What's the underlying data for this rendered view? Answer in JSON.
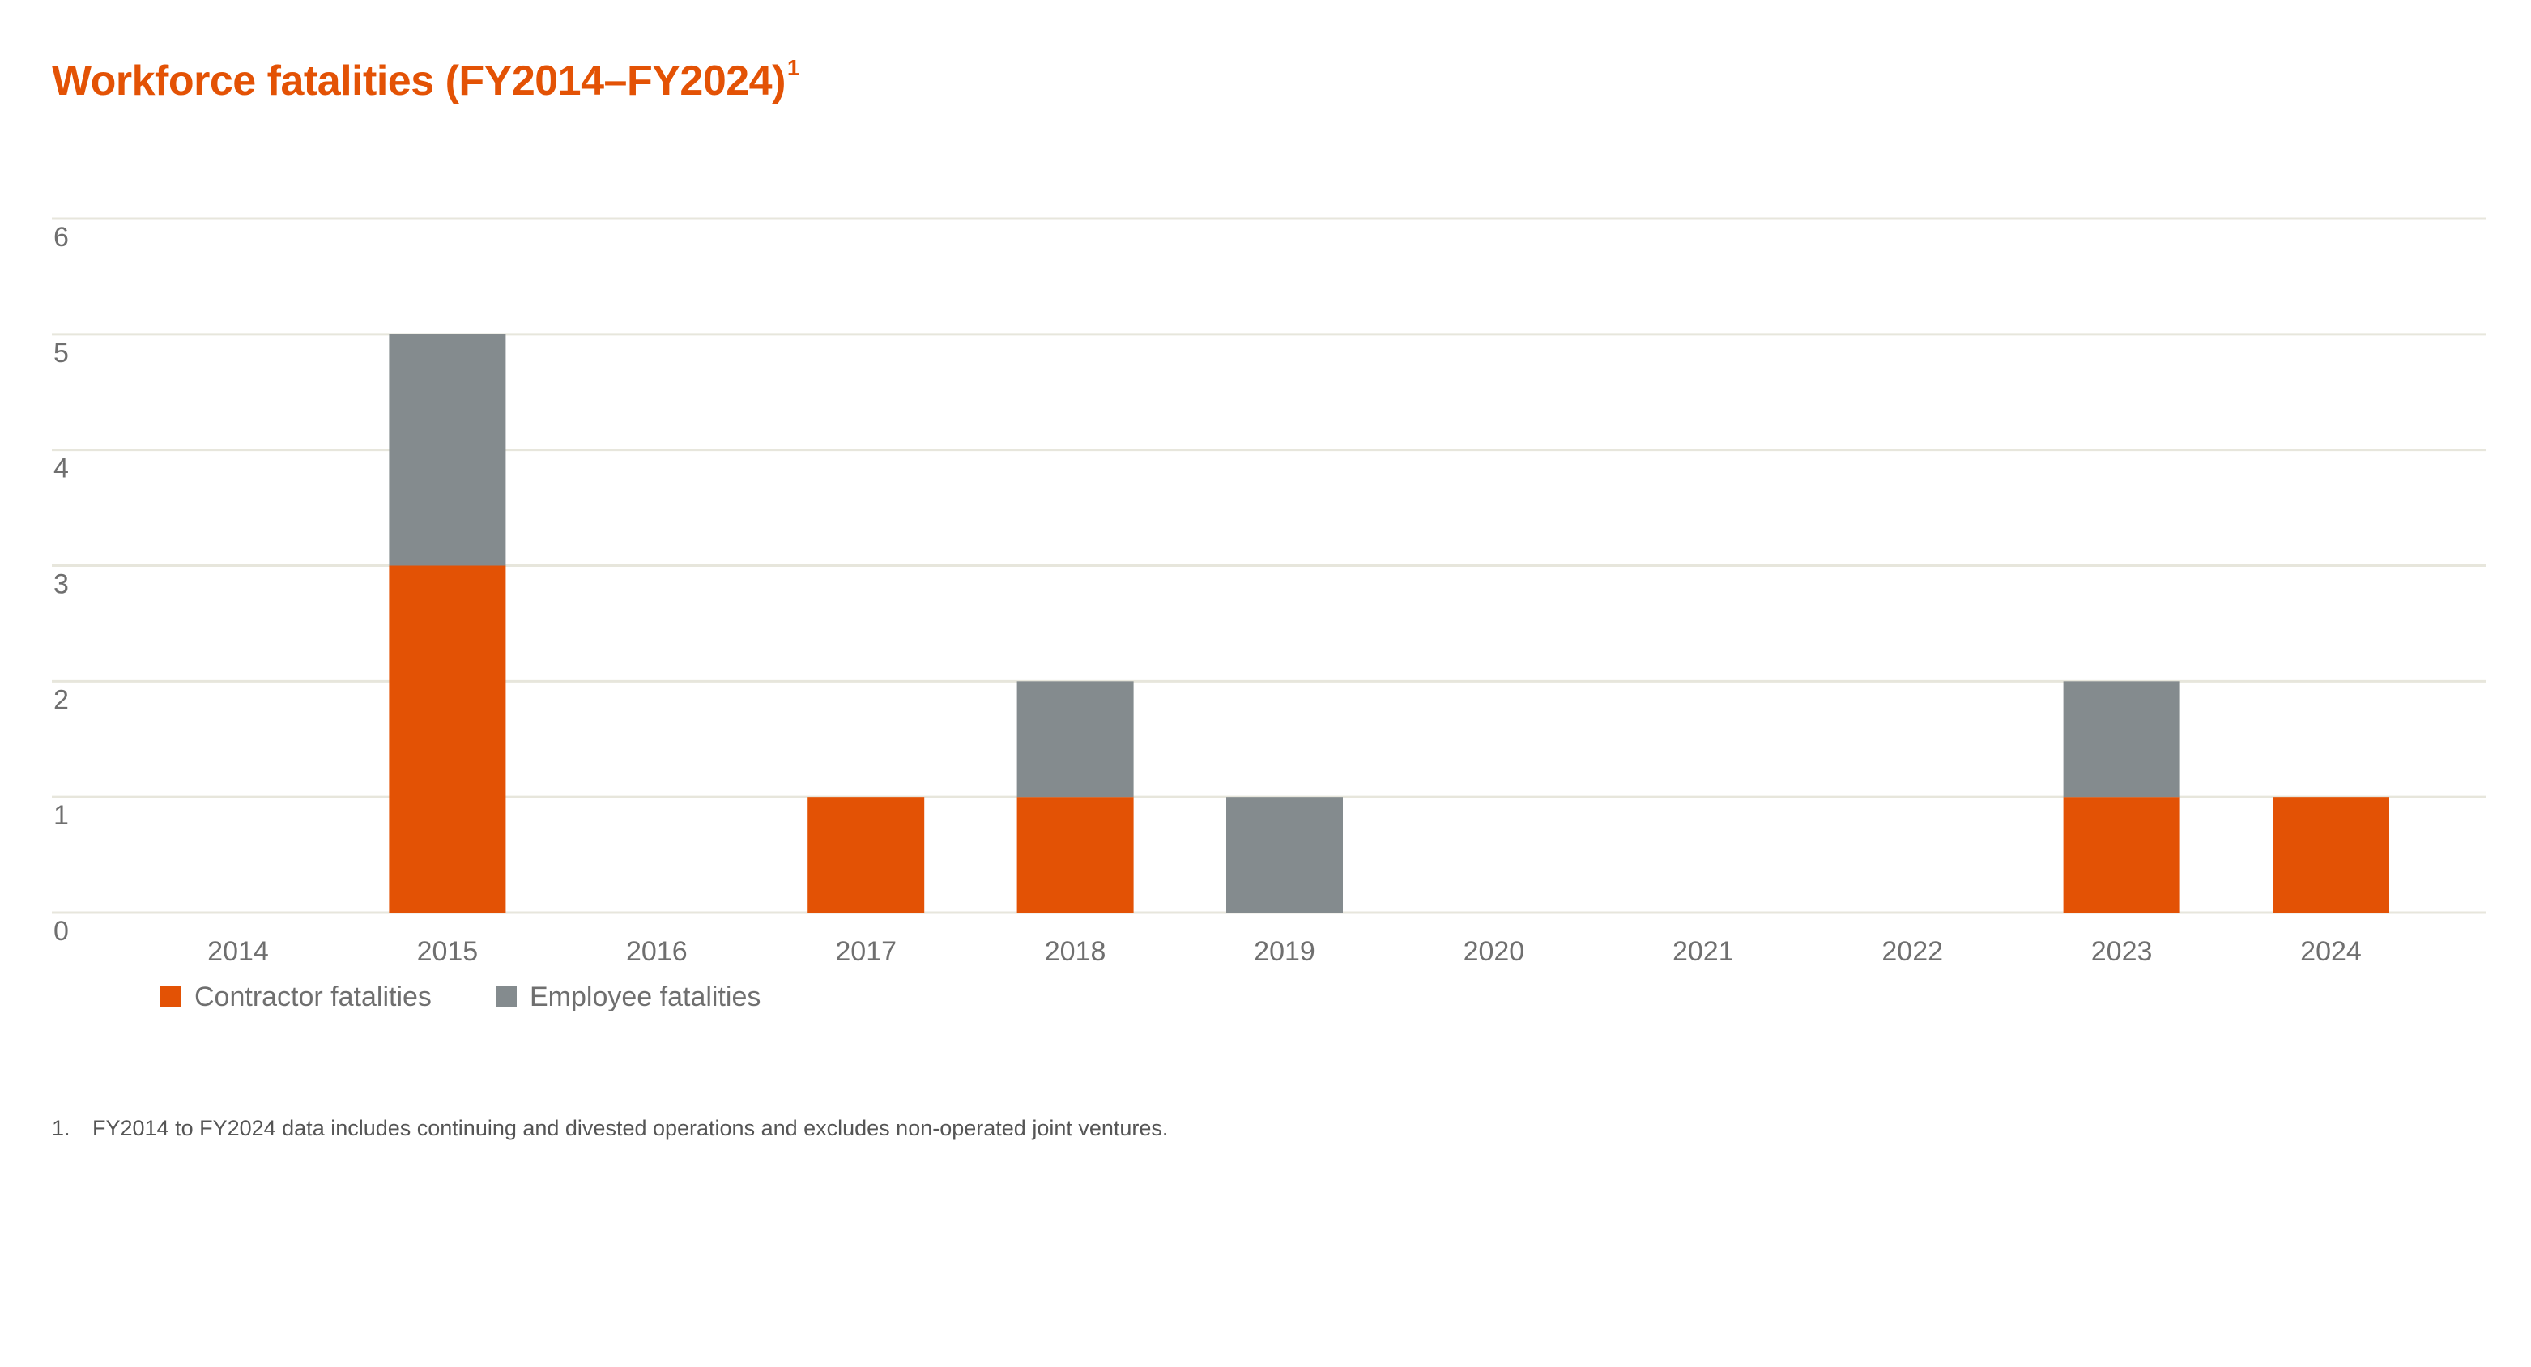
{
  "title": "Workforce fatalities (FY2014–FY2024)",
  "title_sup": "1",
  "footnote": {
    "marker": "1.",
    "text": "FY2014 to FY2024 data includes continuing and divested operations and excludes non-operated joint ventures."
  },
  "colors": {
    "title": "#e35205",
    "contractor": "#e35205",
    "employee": "#848b8e",
    "grid": "#e7e6dc",
    "axis_text": "#6f6f6f"
  },
  "chart_data": {
    "type": "bar",
    "stacked": true,
    "categories": [
      "2014",
      "2015",
      "2016",
      "2017",
      "2018",
      "2019",
      "2020",
      "2021",
      "2022",
      "2023",
      "2024"
    ],
    "series": [
      {
        "name": "Contractor fatalities",
        "values": [
          0,
          3,
          0,
          1,
          1,
          0,
          0,
          0,
          0,
          1,
          1
        ]
      },
      {
        "name": "Employee fatalities",
        "values": [
          0,
          2,
          0,
          0,
          1,
          1,
          0,
          0,
          0,
          1,
          0
        ]
      }
    ],
    "ylim": [
      0,
      6
    ],
    "yticks": [
      "0",
      "1",
      "2",
      "3",
      "4",
      "5",
      "6"
    ],
    "grid": true,
    "legend_position": "bottom-left"
  }
}
